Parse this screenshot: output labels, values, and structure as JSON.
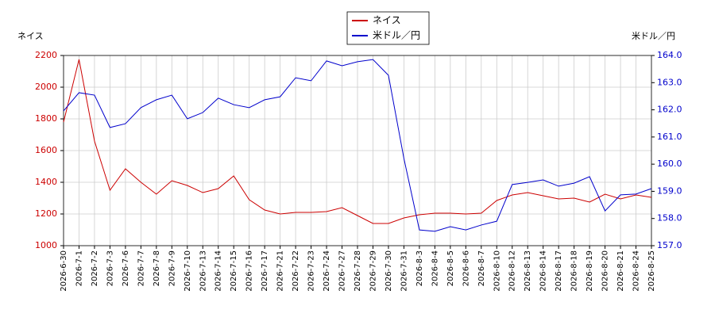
{
  "chart_data": {
    "type": "line",
    "y_label": "ネイス",
    "y2_label": "米ドル／円",
    "categories": [
      "2026-6-30",
      "2026-7-1",
      "2026-7-2",
      "2026-7-3",
      "2026-7-6",
      "2026-7-7",
      "2026-7-8",
      "2026-7-9",
      "2026-7-10",
      "2026-7-13",
      "2026-7-14",
      "2026-7-15",
      "2026-7-16",
      "2026-7-17",
      "2026-7-21",
      "2026-7-22",
      "2026-7-23",
      "2026-7-24",
      "2026-7-27",
      "2026-7-28",
      "2026-7-29",
      "2026-7-30",
      "2026-7-31",
      "2026-8-3",
      "2026-8-4",
      "2026-8-5",
      "2026-8-6",
      "2026-8-7",
      "2026-8-10",
      "2026-8-12",
      "2026-8-13",
      "2026-8-14",
      "2026-8-17",
      "2026-8-18",
      "2026-8-19",
      "2026-8-20",
      "2026-8-21",
      "2026-8-24",
      "2026-8-25"
    ],
    "series": [
      {
        "name": "ネイス",
        "color": "#cc0000",
        "values": [
          1780,
          2175,
          1660,
          1350,
          1485,
          1400,
          1325,
          1410,
          1380,
          1335,
          1360,
          1440,
          1290,
          1225,
          1200,
          1210,
          1210,
          1215,
          1240,
          1190,
          1140,
          1140,
          1175,
          1195,
          1205,
          1205,
          1200,
          1205,
          1285,
          1320,
          1335,
          1315,
          1295,
          1300,
          1275,
          1325,
          1295,
          1320,
          1305
        ]
      },
      {
        "name": "米ドル／円",
        "color": "#0000cc",
        "axis": "y2",
        "values": [
          161.96,
          162.63,
          162.54,
          161.35,
          161.49,
          162.08,
          162.37,
          162.54,
          161.67,
          161.9,
          162.43,
          162.19,
          162.08,
          162.37,
          162.48,
          163.18,
          163.07,
          163.8,
          163.62,
          163.77,
          163.85,
          163.27,
          160.21,
          157.58,
          157.53,
          157.7,
          157.58,
          157.76,
          157.9,
          159.25,
          159.33,
          159.42,
          159.19,
          159.3,
          159.54,
          158.28,
          158.87,
          158.9,
          159.1
        ]
      }
    ],
    "ylim": [
      1000,
      2200
    ],
    "yticks": [
      1000,
      1200,
      1400,
      1600,
      1800,
      2000,
      2200
    ],
    "y2lim": [
      157,
      164
    ],
    "y2ticks": [
      {
        "value": 157,
        "label": "157.0"
      },
      {
        "value": 158,
        "label": "158.0"
      },
      {
        "value": 159,
        "label": "159.0"
      },
      {
        "value": 160,
        "label": "160.0"
      },
      {
        "value": 161,
        "label": "161.0"
      },
      {
        "value": 162,
        "label": "162.0"
      },
      {
        "value": 163,
        "label": "163.0"
      },
      {
        "value": 164,
        "label": "164.0"
      }
    ],
    "grid": true
  }
}
